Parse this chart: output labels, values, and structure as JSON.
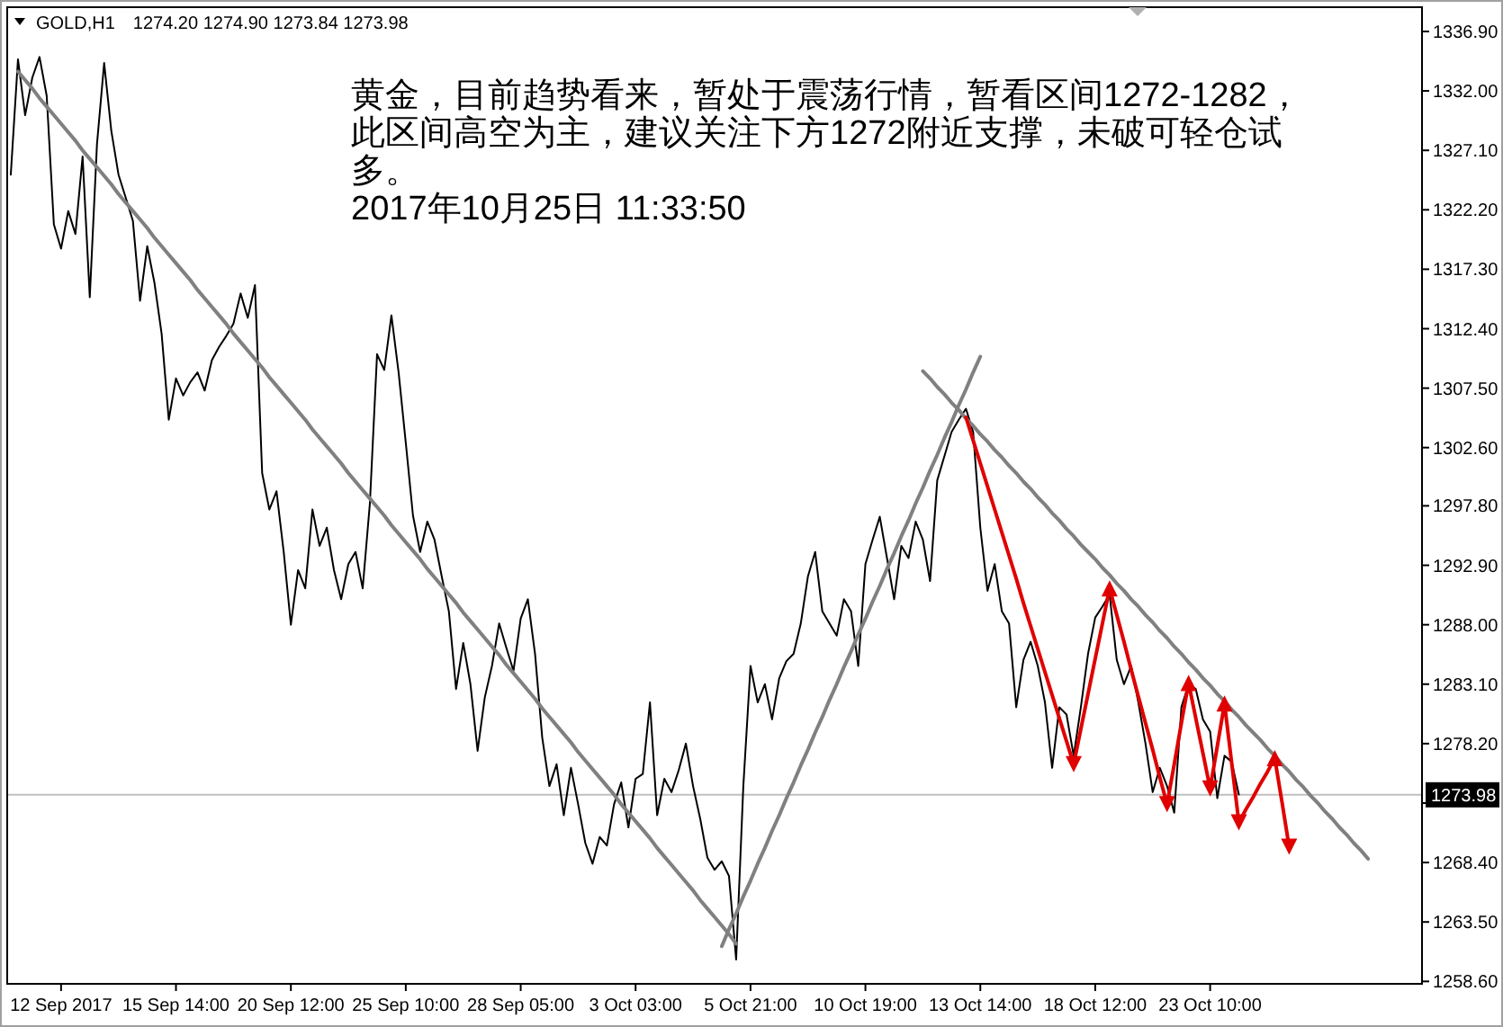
{
  "chart_data": {
    "type": "line",
    "title": "GOLD,H1",
    "subtitle": "1274.20 1274.90 1273.84 1273.98",
    "annotations": [
      "黄金，目前趋势看来，暂处于震荡行情，暂看区间1272-1282，此区间高空为主，建议关注下方1272附近支撑，未破可轻仓试多。",
      "2017年10月25日 11:33:50"
    ],
    "categories": [
      null,
      null,
      null,
      null,
      null,
      null,
      null,
      "12 Sep 2017",
      null,
      null,
      null,
      null,
      null,
      null,
      null,
      null,
      null,
      null,
      null,
      null,
      null,
      null,
      null,
      "15 Sep 14:00",
      null,
      null,
      null,
      null,
      null,
      null,
      null,
      null,
      null,
      null,
      null,
      null,
      null,
      null,
      null,
      "20 Sep 12:00",
      null,
      null,
      null,
      null,
      null,
      null,
      null,
      null,
      null,
      null,
      null,
      null,
      null,
      null,
      null,
      "25 Sep 10:00",
      null,
      null,
      null,
      null,
      null,
      null,
      null,
      null,
      null,
      null,
      null,
      null,
      null,
      null,
      null,
      "28 Sep 05:00",
      null,
      null,
      null,
      null,
      null,
      null,
      null,
      null,
      null,
      null,
      null,
      null,
      null,
      null,
      null,
      "3 Oct 03:00",
      null,
      null,
      null,
      null,
      null,
      null,
      null,
      null,
      null,
      null,
      null,
      null,
      null,
      null,
      null,
      "5 Oct 21:00",
      null,
      null,
      null,
      null,
      null,
      null,
      null,
      null,
      null,
      null,
      null,
      null,
      null,
      null,
      null,
      "10 Oct 19:00",
      null,
      null,
      null,
      null,
      null,
      null,
      null,
      null,
      null,
      null,
      null,
      null,
      null,
      null,
      null,
      "13 Oct 14:00",
      null,
      null,
      null,
      null,
      null,
      null,
      null,
      null,
      null,
      null,
      null,
      null,
      null,
      null,
      null,
      "18 Oct 12:00",
      null,
      null,
      null,
      null,
      null,
      null,
      null,
      null,
      null,
      null,
      null,
      null,
      null,
      null,
      null,
      "23 Oct 10:00",
      null,
      null,
      null,
      null,
      null,
      null,
      null,
      null,
      null,
      null,
      null,
      null,
      null,
      null,
      null,
      null,
      null,
      null,
      null,
      null,
      null,
      null,
      null,
      null,
      null,
      null,
      null,
      null,
      null
    ],
    "ylim": [
      1258.4,
      1338.9
    ],
    "yticks": [
      {
        "value": 1336.9,
        "label": "1336.90"
      },
      {
        "value": 1332,
        "label": "1332.00"
      },
      {
        "value": 1327.1,
        "label": "1327.10"
      },
      {
        "value": 1322.2,
        "label": "1322.20"
      },
      {
        "value": 1317.3,
        "label": "1317.30"
      },
      {
        "value": 1312.4,
        "label": "1312.40"
      },
      {
        "value": 1307.5,
        "label": "1307.50"
      },
      {
        "value": 1302.6,
        "label": "1302.60"
      },
      {
        "value": 1297.8,
        "label": "1297.80"
      },
      {
        "value": 1292.9,
        "label": "1292.90"
      },
      {
        "value": 1288,
        "label": "1288.00"
      },
      {
        "value": 1283.1,
        "label": "1283.10"
      },
      {
        "value": 1278.2,
        "label": "1278.20"
      },
      {
        "value": 1273.3,
        "label": null
      },
      {
        "value": 1268.4,
        "label": "1268.40"
      },
      {
        "value": 1263.5,
        "label": "1263.50"
      },
      {
        "value": 1258.6,
        "label": "1258.60"
      }
    ],
    "ref_lines": [
      {
        "axis": "y",
        "value": 1273.98,
        "label": "1273.98",
        "color": "#c0c0c0"
      }
    ],
    "series": [
      {
        "color": "#000000",
        "values": [
          1325.1,
          1334.6,
          1330.0,
          1333.1,
          1334.8,
          1331.6,
          1321.0,
          1319.0,
          1322.1,
          1320.2,
          1326.6,
          1315.0,
          1327.6,
          1334.3,
          1328.7,
          1325.1,
          1323.2,
          1321.3,
          1314.7,
          1319.2,
          1316.2,
          1312.0,
          1304.9,
          1308.3,
          1306.9,
          1308.0,
          1308.8,
          1307.3,
          1309.8,
          1310.9,
          1311.8,
          1312.8,
          1315.3,
          1313.3,
          1316.0,
          1300.5,
          1297.5,
          1299.0,
          1294.0,
          1288.0,
          1292.5,
          1291.0,
          1297.5,
          1294.5,
          1296.0,
          1292.5,
          1290.1,
          1293.0,
          1294.0,
          1291.0,
          1298.0,
          1310.3,
          1309.0,
          1313.5,
          1308.8,
          1303.0,
          1297.0,
          1294.0,
          1296.5,
          1295.0,
          1292.0,
          1289.1,
          1282.7,
          1286.5,
          1283.1,
          1277.6,
          1282.0,
          1284.6,
          1288.1,
          1286.1,
          1284.2,
          1288.5,
          1290.1,
          1285.6,
          1278.7,
          1274.7,
          1276.5,
          1272.3,
          1276.2,
          1273.2,
          1270.0,
          1268.3,
          1270.5,
          1269.8,
          1273.2,
          1275.0,
          1271.3,
          1275.3,
          1275.7,
          1281.6,
          1272.3,
          1275.3,
          1274.2,
          1276.0,
          1278.2,
          1274.7,
          1272.0,
          1268.8,
          1267.8,
          1268.5,
          1267.3,
          1260.4,
          1274.7,
          1284.6,
          1281.6,
          1283.1,
          1280.2,
          1283.6,
          1285.0,
          1285.6,
          1288.1,
          1292.0,
          1294.0,
          1289.1,
          1288.1,
          1287.1,
          1290.1,
          1289.1,
          1284.6,
          1293.0,
          1295.0,
          1296.9,
          1293.5,
          1290.1,
          1294.5,
          1293.5,
          1296.5,
          1295.0,
          1291.6,
          1299.9,
          1301.9,
          1303.9,
          1304.9,
          1305.8,
          1303.9,
          1296.0,
          1290.8,
          1293.0,
          1289.1,
          1288.1,
          1281.2,
          1285.1,
          1286.6,
          1284.6,
          1281.6,
          1276.2,
          1281.2,
          1280.6,
          1277.2,
          1281.2,
          1285.6,
          1288.6,
          1289.5,
          1290.5,
          1285.1,
          1283.1,
          1284.6,
          1281.6,
          1278.2,
          1274.2,
          1276.2,
          1274.7,
          1272.5,
          1281.2,
          1283.1,
          1282.7,
          1280.2,
          1279.2,
          1273.7,
          1277.2,
          1276.7,
          1274.0,
          null,
          null,
          null,
          null,
          null,
          null,
          null,
          null,
          null,
          null,
          null,
          null,
          null,
          null,
          null,
          null,
          null,
          null,
          null,
          null,
          null,
          null,
          null,
          null,
          null
        ]
      },
      {
        "type": "line",
        "color": "#808080",
        "values": [
          null,
          1333.6,
          1332.9,
          1332.2,
          1331.4,
          1330.7,
          1330.0,
          1329.3,
          1328.6,
          1327.9,
          1327.1,
          1326.4,
          1325.7,
          1325.0,
          1324.3,
          1323.5,
          1322.8,
          1322.1,
          1321.4,
          1320.7,
          1319.9,
          1319.2,
          1318.5,
          1317.8,
          1317.1,
          1316.4,
          1315.6,
          1314.9,
          1314.2,
          1313.5,
          1312.8,
          1312.0,
          1311.3,
          1310.6,
          1309.9,
          1309.2,
          1308.4,
          1307.7,
          1307.0,
          1306.3,
          1305.6,
          1304.9,
          1304.1,
          1303.4,
          1302.7,
          1302.0,
          1301.3,
          1300.5,
          1299.8,
          1299.1,
          1298.4,
          1297.7,
          1297.0,
          1296.2,
          1295.5,
          1294.8,
          1294.1,
          1293.4,
          1292.6,
          1291.9,
          1291.2,
          1290.5,
          1289.8,
          1289.0,
          1288.3,
          1287.6,
          1286.9,
          1286.2,
          1285.5,
          1284.7,
          1284.0,
          1283.3,
          1282.6,
          1281.9,
          1281.1,
          1280.4,
          1279.7,
          1279.0,
          1278.3,
          1277.5,
          1276.8,
          1276.1,
          1275.4,
          1274.7,
          1274.0,
          1273.2,
          1272.5,
          1271.8,
          1271.1,
          1270.4,
          1269.6,
          1268.9,
          1268.2,
          1267.5,
          1266.8,
          1266.1,
          1265.3,
          1264.6,
          1263.9,
          1263.2,
          1262.5,
          1261.7,
          null,
          null,
          null,
          null,
          null,
          null,
          null,
          null,
          null,
          null,
          null,
          null,
          null,
          null,
          null,
          null,
          null,
          null,
          null,
          null,
          null,
          null,
          null,
          null,
          null,
          null,
          null,
          null,
          null,
          null,
          null,
          null,
          null,
          null,
          null,
          null,
          null,
          null,
          null,
          null,
          null,
          null,
          null,
          null,
          null,
          null,
          null,
          null,
          null,
          null,
          null,
          null,
          null,
          null,
          null,
          null,
          null,
          null,
          null,
          null,
          null,
          null,
          null,
          null,
          null,
          null,
          null,
          null,
          null,
          null,
          null,
          null,
          null,
          null,
          null,
          null,
          null,
          null,
          null,
          null,
          null,
          null,
          null,
          null,
          null,
          null,
          null,
          null,
          null,
          null,
          null,
          null,
          null,
          null,
          null
        ]
      },
      {
        "type": "line",
        "color": "#808080",
        "values": [
          null,
          null,
          null,
          null,
          null,
          null,
          null,
          null,
          null,
          null,
          null,
          null,
          null,
          null,
          null,
          null,
          null,
          null,
          null,
          null,
          null,
          null,
          null,
          null,
          null,
          null,
          null,
          null,
          null,
          null,
          null,
          null,
          null,
          null,
          null,
          null,
          null,
          null,
          null,
          null,
          null,
          null,
          null,
          null,
          null,
          null,
          null,
          null,
          null,
          null,
          null,
          null,
          null,
          null,
          null,
          null,
          null,
          null,
          null,
          null,
          null,
          null,
          null,
          null,
          null,
          null,
          null,
          null,
          null,
          null,
          null,
          null,
          null,
          null,
          null,
          null,
          null,
          null,
          null,
          null,
          null,
          null,
          null,
          null,
          null,
          null,
          null,
          null,
          null,
          null,
          null,
          null,
          null,
          null,
          null,
          null,
          null,
          null,
          null,
          1261.5,
          1262.9,
          1264.2,
          1265.6,
          1266.9,
          1268.3,
          1269.6,
          1271.0,
          1272.3,
          1273.7,
          1275.0,
          1276.4,
          1277.7,
          1279.1,
          1280.4,
          1281.8,
          1283.1,
          1284.5,
          1285.8,
          1287.2,
          1288.5,
          1289.9,
          1291.2,
          1292.6,
          1293.9,
          1295.3,
          1296.6,
          1298.0,
          1299.3,
          1300.7,
          1302.0,
          1303.4,
          1304.7,
          1306.1,
          1307.4,
          1308.8,
          1310.1,
          null,
          null,
          null,
          null,
          null,
          null,
          null,
          null,
          null,
          null,
          null,
          null,
          null,
          null,
          null,
          null,
          null,
          null,
          null,
          null,
          null,
          null,
          null,
          null,
          null,
          null,
          null,
          null,
          null,
          null,
          null,
          null,
          null,
          null,
          null,
          null,
          null,
          null,
          null,
          null,
          null,
          null,
          null,
          null,
          null,
          null,
          null,
          null,
          null,
          null,
          null,
          null,
          null,
          null,
          null,
          null,
          null,
          null,
          null,
          null,
          null
        ]
      },
      {
        "type": "line",
        "color": "#808080",
        "values": [
          null,
          null,
          null,
          null,
          null,
          null,
          null,
          null,
          null,
          null,
          null,
          null,
          null,
          null,
          null,
          null,
          null,
          null,
          null,
          null,
          null,
          null,
          null,
          null,
          null,
          null,
          null,
          null,
          null,
          null,
          null,
          null,
          null,
          null,
          null,
          null,
          null,
          null,
          null,
          null,
          null,
          null,
          null,
          null,
          null,
          null,
          null,
          null,
          null,
          null,
          null,
          null,
          null,
          null,
          null,
          null,
          null,
          null,
          null,
          null,
          null,
          null,
          null,
          null,
          null,
          null,
          null,
          null,
          null,
          null,
          null,
          null,
          null,
          null,
          null,
          null,
          null,
          null,
          null,
          null,
          null,
          null,
          null,
          null,
          null,
          null,
          null,
          null,
          null,
          null,
          null,
          null,
          null,
          null,
          null,
          null,
          null,
          null,
          null,
          null,
          null,
          null,
          null,
          null,
          null,
          null,
          null,
          null,
          null,
          null,
          null,
          null,
          null,
          null,
          null,
          null,
          null,
          null,
          null,
          null,
          null,
          null,
          null,
          null,
          null,
          null,
          null,
          1308.9,
          1308.3,
          1307.6,
          1307.0,
          1306.3,
          1305.7,
          1305.0,
          1304.4,
          1303.7,
          1303.1,
          1302.4,
          1301.8,
          1301.1,
          1300.5,
          1299.8,
          1299.2,
          1298.5,
          1297.9,
          1297.2,
          1296.6,
          1295.9,
          1295.3,
          1294.6,
          1294.0,
          1293.4,
          1292.7,
          1292.1,
          1291.4,
          1290.8,
          1290.1,
          1289.5,
          1288.8,
          1288.2,
          1287.5,
          1286.9,
          1286.2,
          1285.6,
          1284.9,
          1284.3,
          1283.6,
          1283.0,
          1282.3,
          1281.7,
          1281.0,
          1280.4,
          1279.7,
          1279.1,
          1278.5,
          1277.8,
          1277.2,
          1276.5,
          1275.9,
          1275.2,
          1274.6,
          1273.9,
          1273.3,
          1272.6,
          1272.0,
          1271.3,
          1270.7,
          1270.0,
          1269.4,
          1268.7,
          null,
          null,
          null,
          null,
          null,
          null,
          null
        ]
      },
      {
        "type": "line",
        "color": "#e00000",
        "values": [
          null,
          null,
          null,
          null,
          null,
          null,
          null,
          null,
          null,
          null,
          null,
          null,
          null,
          null,
          null,
          null,
          null,
          null,
          null,
          null,
          null,
          null,
          null,
          null,
          null,
          null,
          null,
          null,
          null,
          null,
          null,
          null,
          null,
          null,
          null,
          null,
          null,
          null,
          null,
          null,
          null,
          null,
          null,
          null,
          null,
          null,
          null,
          null,
          null,
          null,
          null,
          null,
          null,
          null,
          null,
          null,
          null,
          null,
          null,
          null,
          null,
          null,
          null,
          null,
          null,
          null,
          null,
          null,
          null,
          null,
          null,
          null,
          null,
          null,
          null,
          null,
          null,
          null,
          null,
          null,
          null,
          null,
          null,
          null,
          null,
          null,
          null,
          null,
          null,
          null,
          null,
          null,
          null,
          null,
          null,
          null,
          null,
          null,
          null,
          null,
          null,
          null,
          null,
          null,
          null,
          null,
          null,
          null,
          null,
          null,
          null,
          null,
          null,
          null,
          null,
          null,
          null,
          null,
          null,
          null,
          null,
          null,
          null,
          null,
          null,
          null,
          null,
          null,
          null,
          null,
          null,
          null,
          null,
          1305.1,
          1303.2,
          1301.3,
          1299.4,
          1297.5,
          1295.6,
          1293.7,
          1291.8,
          1289.8,
          1287.9,
          1286.0,
          1284.1,
          1282.2,
          1280.3,
          1278.4,
          1276.5,
          1279.4,
          1282.3,
          1285.2,
          1288.1,
          1291.0,
          1288.8,
          1286.6,
          1284.3,
          1282.1,
          1279.9,
          1277.7,
          1275.4,
          1273.2,
          1276.5,
          1279.9,
          1283.2,
          1280.3,
          1277.4,
          1274.5,
          1278.0,
          1281.5,
          1276.6,
          1271.7,
          1272.8,
          1273.8,
          1274.9,
          1275.9,
          1277.0,
          1273.4,
          1269.7,
          null,
          null,
          null,
          null,
          null,
          null,
          null,
          null,
          null,
          null,
          null,
          null,
          null,
          null,
          null,
          null,
          null,
          null
        ]
      },
      {
        "type": "scatter",
        "color": "#e00000",
        "marker": "triangle",
        "values": [
          null,
          null,
          null,
          null,
          null,
          null,
          null,
          null,
          null,
          null,
          null,
          null,
          null,
          null,
          null,
          null,
          null,
          null,
          null,
          null,
          null,
          null,
          null,
          null,
          null,
          null,
          null,
          null,
          null,
          null,
          null,
          null,
          null,
          null,
          null,
          null,
          null,
          null,
          null,
          null,
          null,
          null,
          null,
          null,
          null,
          null,
          null,
          null,
          null,
          null,
          null,
          null,
          null,
          null,
          null,
          null,
          null,
          null,
          null,
          null,
          null,
          null,
          null,
          null,
          null,
          null,
          null,
          null,
          null,
          null,
          null,
          null,
          null,
          null,
          null,
          null,
          null,
          null,
          null,
          null,
          null,
          null,
          null,
          null,
          null,
          null,
          null,
          null,
          null,
          null,
          null,
          null,
          null,
          null,
          null,
          null,
          null,
          null,
          null,
          null,
          null,
          null,
          null,
          null,
          null,
          null,
          null,
          null,
          null,
          null,
          null,
          null,
          null,
          null,
          null,
          null,
          null,
          null,
          null,
          null,
          null,
          null,
          null,
          null,
          null,
          null,
          null,
          null,
          null,
          null,
          null,
          null,
          null,
          null,
          null,
          null,
          null,
          null,
          null,
          null,
          null,
          null,
          null,
          null,
          null,
          null,
          null,
          null,
          1276.5,
          null,
          null,
          null,
          null,
          1291.0,
          null,
          null,
          null,
          null,
          null,
          null,
          null,
          1273.2,
          null,
          null,
          1283.2,
          null,
          null,
          1274.5,
          null,
          1281.5,
          null,
          1271.7,
          null,
          null,
          null,
          null,
          1277.0,
          null,
          1269.7,
          null,
          null,
          null,
          null,
          null,
          null,
          null,
          null,
          null,
          null,
          null,
          null,
          null,
          null,
          null,
          null,
          null,
          null
        ]
      }
    ]
  }
}
